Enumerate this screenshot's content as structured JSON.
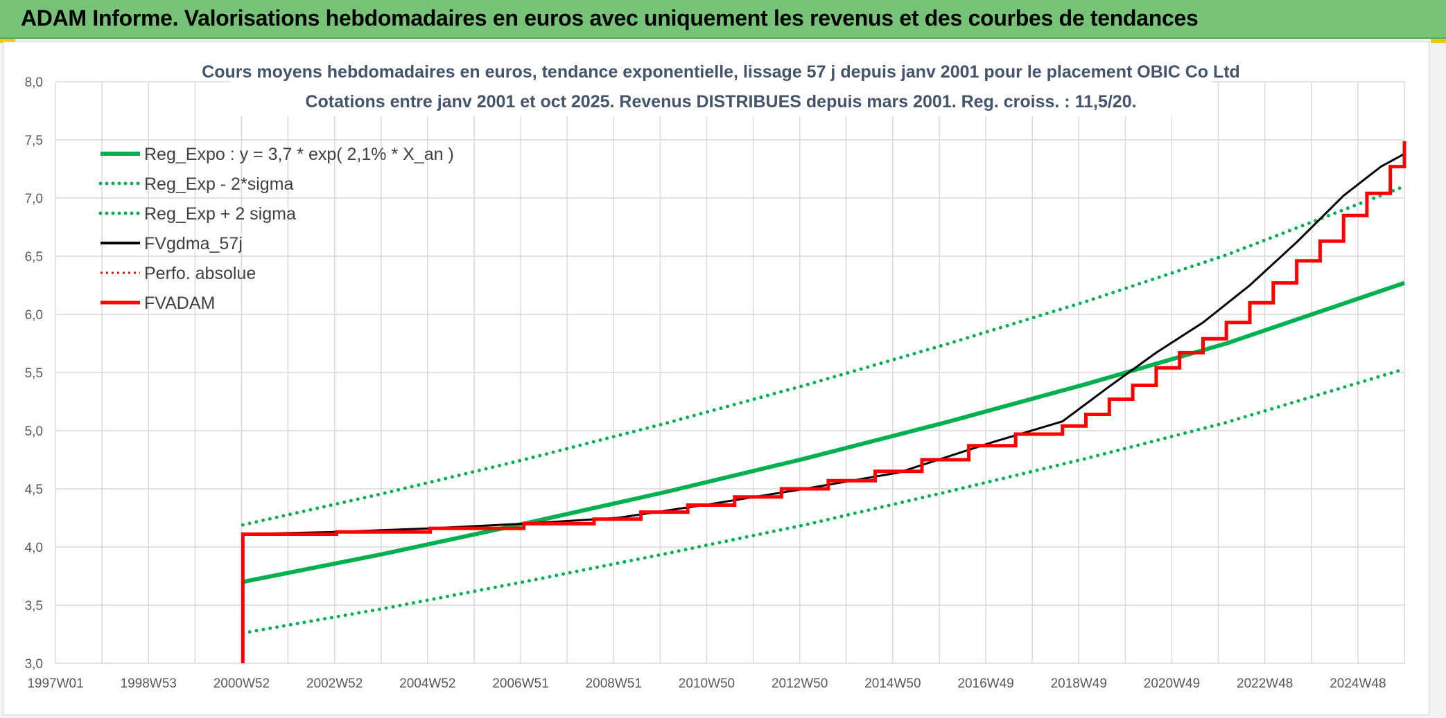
{
  "header": {
    "title": "ADAM Informe. Valorisations hebdomadaires en euros avec uniquement les revenus et des courbes de tendances"
  },
  "colors": {
    "banner": "#76c276",
    "reg_green": "#00b050",
    "black": "#000000",
    "red": "#ff0000",
    "grid": "#d9d9d9"
  },
  "chart_data": {
    "type": "line",
    "title": "Cours moyens hebdomadaires en euros, tendance exponentielle, lissage 57 j depuis janv 2001 pour le placement OBIC Co Ltd",
    "subtitle": "Cotations entre janv 2001 et oct 2025. Revenus DISTRIBUES depuis mars 2001. Reg. croiss. : 11,5/20.",
    "xlabel": "",
    "ylabel": "",
    "x_tick_labels": [
      "1997W01",
      "1998W53",
      "2000W52",
      "2002W52",
      "2004W52",
      "2006W51",
      "2008W51",
      "2010W50",
      "2012W50",
      "2014W50",
      "2016W49",
      "2018W49",
      "2020W49",
      "2022W48",
      "2024W48"
    ],
    "x_range": [
      1997.0,
      2025.8
    ],
    "ylim": [
      3.0,
      8.0
    ],
    "y_ticks": [
      3.0,
      3.5,
      4.0,
      4.5,
      5.0,
      5.5,
      6.0,
      6.5,
      7.0,
      7.5,
      8.0
    ],
    "y_tick_labels": [
      "3,0",
      "3,5",
      "4,0",
      "4,5",
      "5,0",
      "5,5",
      "6,0",
      "6,5",
      "7,0",
      "7,5",
      "8,0"
    ],
    "grid": true,
    "legend_position": "top-left",
    "legend": [
      "Reg_Expo : y = 3,7 * exp( 2,1% *  X_an )",
      "Reg_Exp - 2*sigma",
      "Reg_Exp + 2 sigma",
      "FVgdma_57j",
      "Perfo. absolue",
      "FVADAM"
    ],
    "series": [
      {
        "name": "Reg_Expo : y = 3,7 * exp( 2,1% *  X_an )",
        "color": "#00b050",
        "style": "solid",
        "x": [
          2001.0,
          2004.0,
          2007.0,
          2010.0,
          2013.0,
          2016.0,
          2019.0,
          2022.0,
          2025.8
        ],
        "y": [
          3.7,
          3.94,
          4.2,
          4.47,
          4.76,
          5.07,
          5.4,
          5.75,
          6.27
        ]
      },
      {
        "name": "Reg_Exp - 2*sigma",
        "color": "#00b050",
        "style": "dotted",
        "x": [
          2001.0,
          2004.0,
          2007.0,
          2010.0,
          2013.0,
          2016.0,
          2019.0,
          2022.0,
          2025.8
        ],
        "y": [
          3.26,
          3.47,
          3.7,
          3.94,
          4.19,
          4.47,
          4.76,
          5.07,
          5.53
        ]
      },
      {
        "name": "Reg_Exp + 2 sigma",
        "color": "#00b050",
        "style": "dotted",
        "x": [
          2001.0,
          2004.0,
          2007.0,
          2010.0,
          2013.0,
          2016.0,
          2019.0,
          2022.0,
          2025.8
        ],
        "y": [
          4.19,
          4.46,
          4.75,
          5.06,
          5.39,
          5.74,
          6.11,
          6.51,
          7.1
        ]
      },
      {
        "name": "FVgdma_57j",
        "color": "#000000",
        "style": "solid",
        "x": [
          2001.0,
          2003.0,
          2005.0,
          2007.0,
          2009.0,
          2011.0,
          2013.0,
          2015.0,
          2017.0,
          2018.5,
          2019.5,
          2020.5,
          2021.5,
          2022.5,
          2023.5,
          2024.5,
          2025.3,
          2025.8
        ],
        "y": [
          4.11,
          4.13,
          4.16,
          4.2,
          4.25,
          4.37,
          4.5,
          4.64,
          4.9,
          5.08,
          5.38,
          5.67,
          5.93,
          6.25,
          6.62,
          7.02,
          7.27,
          7.38
        ]
      },
      {
        "name": "FVADAM",
        "color": "#ff0000",
        "style": "step",
        "x": [
          2001.0,
          2001.0,
          2003.0,
          2005.0,
          2007.0,
          2008.5,
          2009.5,
          2010.5,
          2011.5,
          2012.5,
          2013.5,
          2014.5,
          2015.5,
          2016.5,
          2017.5,
          2018.5,
          2019.0,
          2019.5,
          2020.0,
          2020.5,
          2021.0,
          2021.5,
          2022.0,
          2022.5,
          2023.0,
          2023.5,
          2024.0,
          2024.5,
          2025.0,
          2025.5,
          2025.8
        ],
        "y": [
          3.0,
          4.11,
          4.13,
          4.16,
          4.2,
          4.24,
          4.3,
          4.36,
          4.43,
          4.5,
          4.57,
          4.65,
          4.75,
          4.87,
          4.97,
          5.04,
          5.14,
          5.27,
          5.39,
          5.54,
          5.67,
          5.79,
          5.93,
          6.1,
          6.27,
          6.46,
          6.63,
          6.85,
          7.04,
          7.27,
          7.49
        ]
      }
    ]
  }
}
